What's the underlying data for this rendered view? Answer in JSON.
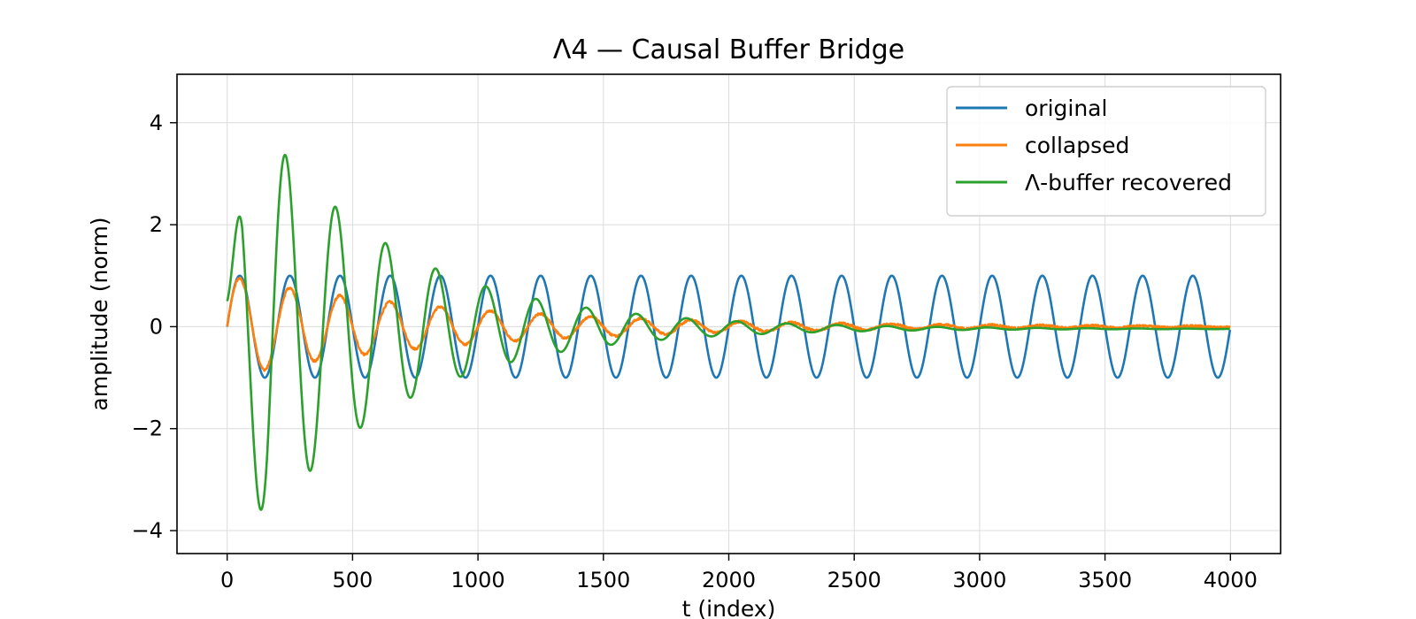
{
  "chart_data": {
    "type": "line",
    "title": "Λ4 — Causal Buffer Bridge",
    "xlabel": "t (index)",
    "ylabel": "amplitude (norm)",
    "xlim": [
      -200,
      4200
    ],
    "ylim": [
      -4.45,
      4.95
    ],
    "x_ticks": [
      0,
      500,
      1000,
      1500,
      2000,
      2500,
      3000,
      3500,
      4000
    ],
    "x_tick_labels": [
      "0",
      "500",
      "1000",
      "1500",
      "2000",
      "2500",
      "3000",
      "3500",
      "4000"
    ],
    "y_ticks": [
      -4,
      -2,
      0,
      2,
      4
    ],
    "y_tick_labels": [
      "−4",
      "−2",
      "0",
      "2",
      "4"
    ],
    "grid": true,
    "legend_position": "top-right",
    "x_range": [
      0,
      3999
    ],
    "series": [
      {
        "name": "original",
        "color": "#1f77b4",
        "generator": "sine",
        "amplitude": 1.0,
        "period": 200,
        "phase_deg": 0,
        "decay_tau": null,
        "offset": 0
      },
      {
        "name": "collapsed",
        "color": "#ff7f0e",
        "generator": "damped-sine",
        "amplitude": 1.0,
        "period": 200,
        "phase_deg": 0,
        "decay_tau": 900,
        "noise": 0.02,
        "offset": 0
      },
      {
        "name": "Λ-buffer recovered",
        "color": "#2ca02c",
        "generator": "damped-sine",
        "amplitude": 5.1,
        "period": 200,
        "phase_deg": 6,
        "decay_tau": 560,
        "offset": -0.06,
        "offset_tau": 3000,
        "rise": [
          0,
          160
        ]
      }
    ]
  }
}
